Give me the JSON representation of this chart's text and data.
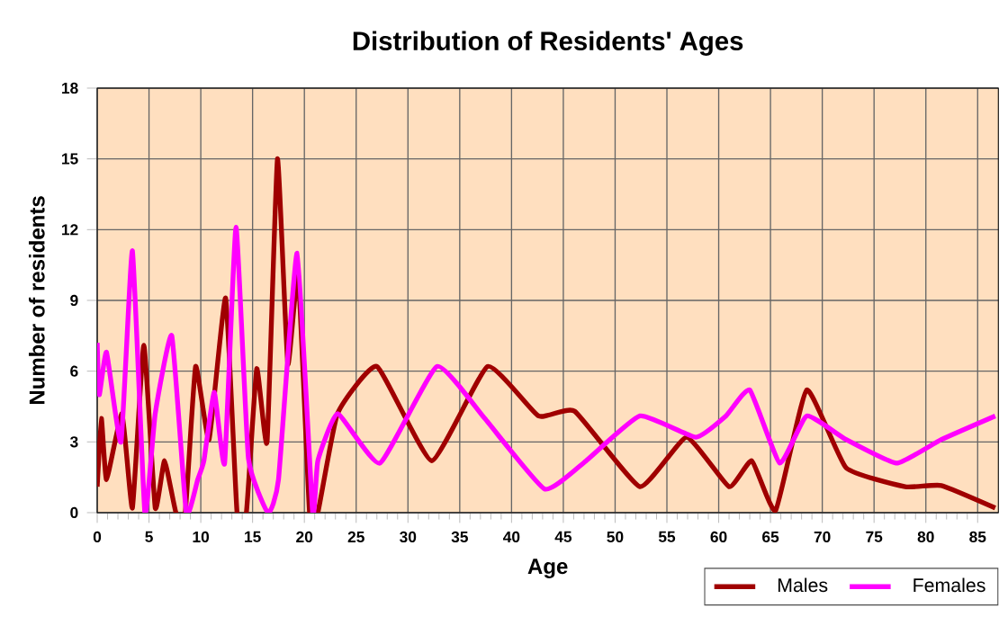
{
  "chart_data": {
    "type": "line",
    "title": "Distribution of Residents' Ages",
    "xlabel": "Age",
    "ylabel": "Number of residents",
    "xlim": [
      0,
      87
    ],
    "ylim": [
      0,
      18
    ],
    "xticks": [
      0,
      5,
      10,
      15,
      20,
      25,
      30,
      35,
      40,
      45,
      50,
      55,
      60,
      65,
      70,
      75,
      80,
      85
    ],
    "yticks": [
      0,
      3,
      6,
      9,
      12,
      15,
      18
    ],
    "grid": true,
    "legend": "bottom right",
    "marker": "none",
    "line_style": "solid",
    "series": [
      {
        "name": "Males",
        "color": "#a00000",
        "x": [
          0,
          0.4,
          0.9,
          2.4,
          3.4,
          4.5,
          5.6,
          6.5,
          7.6,
          8.5,
          9.5,
          10.8,
          12.4,
          13.5,
          14.4,
          15.4,
          16.4,
          17.4,
          18.4,
          19.4,
          20.5,
          21.3,
          23.2,
          27.0,
          32.3,
          37.7,
          42.6,
          46.1,
          52.4,
          56.9,
          61.0,
          63.2,
          65.5,
          68.5,
          72.3,
          78.0,
          81.5,
          86.7
        ],
        "values": [
          1.1,
          4.0,
          1.4,
          4.2,
          0.2,
          7.1,
          0.2,
          2.2,
          0,
          0,
          6.2,
          3.1,
          9.1,
          0,
          0,
          6.1,
          3.0,
          15.0,
          6.3,
          10.1,
          0,
          0,
          4.2,
          6.2,
          2.2,
          6.2,
          4.1,
          4.3,
          1.1,
          3.2,
          1.1,
          2.2,
          0.1,
          5.2,
          1.9,
          1.1,
          1.15,
          0.2
        ]
      },
      {
        "name": "Females",
        "color": "#ff00ff",
        "x": [
          0,
          0.2,
          0.9,
          2.3,
          3.4,
          4.6,
          5.6,
          7.2,
          8.6,
          9.7,
          10.3,
          11.3,
          12.3,
          13.4,
          14.6,
          16.5,
          17.5,
          19.3,
          20.8,
          21.3,
          23.2,
          27.3,
          32.8,
          37.4,
          43.2,
          47.2,
          52.4,
          57.8,
          60.7,
          63.0,
          65.9,
          68.5,
          72.3,
          77.2,
          81.5,
          86.7
        ],
        "values": [
          7.2,
          5.0,
          6.8,
          3.0,
          11.1,
          0,
          4.2,
          7.5,
          0,
          1.4,
          2.2,
          5.1,
          2.1,
          12.1,
          2.3,
          0,
          1.4,
          11.0,
          0,
          2.2,
          4.2,
          2.1,
          6.2,
          4.0,
          1.0,
          2.2,
          4.1,
          3.2,
          4.1,
          5.2,
          2.1,
          4.1,
          3.1,
          2.1,
          3.1,
          4.1
        ]
      }
    ]
  }
}
